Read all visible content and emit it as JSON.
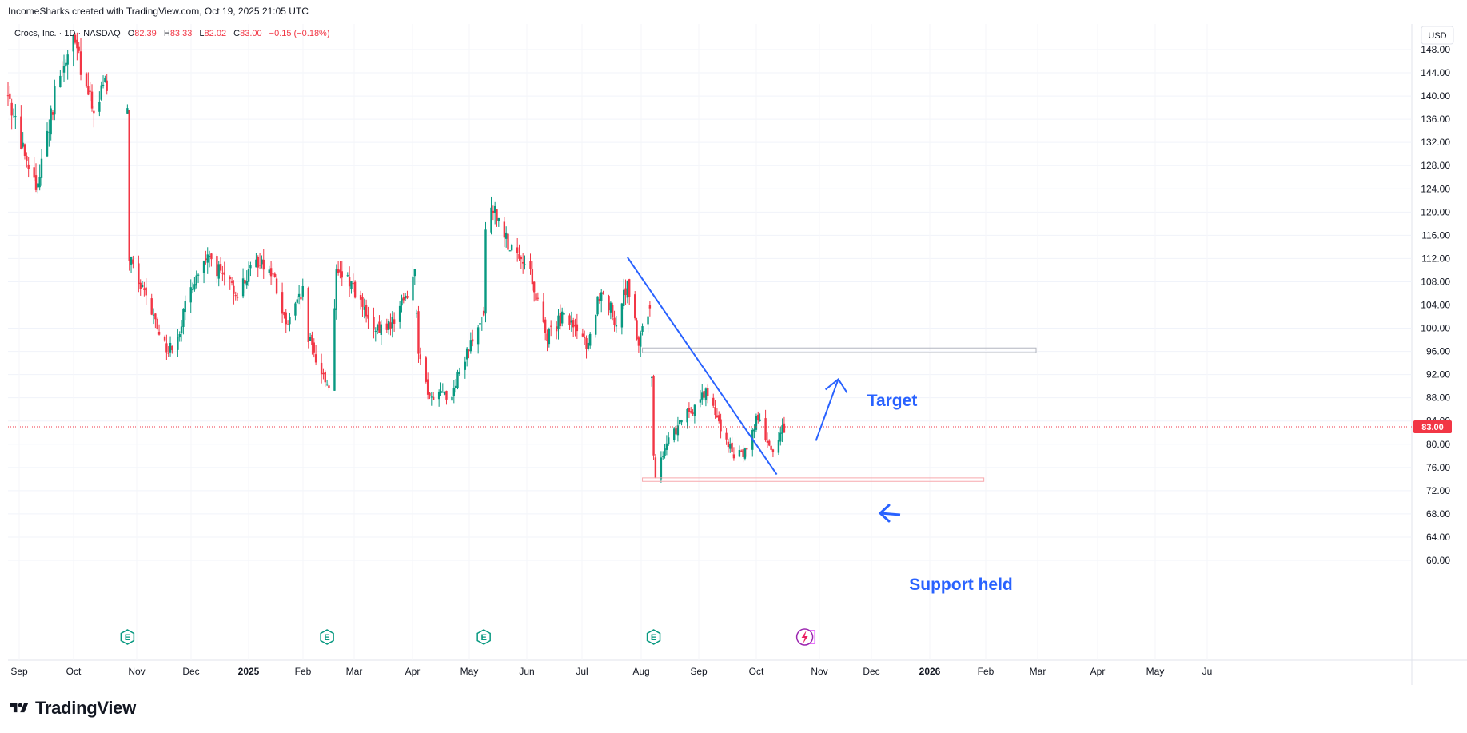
{
  "header": "IncomeSharks created with TradingView.com, Oct 19, 2025 21:05 UTC",
  "symbol_line": {
    "name": "Crocs, Inc. · 1D · NASDAQ",
    "o_label": "O",
    "o_value": "82.39",
    "h_label": "H",
    "h_value": "83.33",
    "l_label": "L",
    "l_value": "82.02",
    "c_label": "C",
    "c_value": "83.00",
    "change": "−0.15 (−0.18%)"
  },
  "currency": "USD",
  "last_price_label": "83.00",
  "footer_brand": "TradingView",
  "colors": {
    "up": "#089981",
    "down": "#f23645",
    "line": "#2962ff",
    "last_price": "#f23645",
    "earnings": "#089981",
    "earnings_future": "#e040fb"
  },
  "icons": [
    "earnings-icon",
    "dividend-icon",
    "tradingview-logo-icon"
  ],
  "chart_data": {
    "type": "candlestick",
    "y_ticks": [
      "148.00",
      "144.00",
      "140.00",
      "136.00",
      "132.00",
      "128.00",
      "124.00",
      "120.00",
      "116.00",
      "112.00",
      "108.00",
      "104.00",
      "100.00",
      "96.00",
      "92.00",
      "88.00",
      "84.00",
      "80.00",
      "76.00",
      "72.00",
      "68.00",
      "64.00",
      "60.00"
    ],
    "ylim": [
      58.6,
      151.3
    ],
    "x_ticks": [
      {
        "label": "Sep",
        "bold": false
      },
      {
        "label": "Oct",
        "bold": false
      },
      {
        "label": "Nov",
        "bold": false
      },
      {
        "label": "Dec",
        "bold": false
      },
      {
        "label": "2025",
        "bold": true
      },
      {
        "label": "Feb",
        "bold": false
      },
      {
        "label": "Mar",
        "bold": false
      },
      {
        "label": "Apr",
        "bold": false
      },
      {
        "label": "May",
        "bold": false
      },
      {
        "label": "Jun",
        "bold": false
      },
      {
        "label": "Jul",
        "bold": false
      },
      {
        "label": "Aug",
        "bold": false
      },
      {
        "label": "Sep",
        "bold": false
      },
      {
        "label": "Oct",
        "bold": false
      },
      {
        "label": "Nov",
        "bold": false
      },
      {
        "label": "Dec",
        "bold": false
      },
      {
        "label": "2026",
        "bold": true
      },
      {
        "label": "Feb",
        "bold": false
      },
      {
        "label": "Mar",
        "bold": false
      },
      {
        "label": "Apr",
        "bold": false
      },
      {
        "label": "May",
        "bold": false
      },
      {
        "label": "Ju",
        "bold": false
      }
    ],
    "last_price": 83.0,
    "price_path": [
      {
        "d": "2024-08-26",
        "p": 140
      },
      {
        "d": "2024-09-05",
        "p": 128
      },
      {
        "d": "2024-09-10",
        "p": 124
      },
      {
        "d": "2024-09-20",
        "p": 140
      },
      {
        "d": "2024-09-30",
        "p": 150
      },
      {
        "d": "2024-10-10",
        "p": 138
      },
      {
        "d": "2024-10-18",
        "p": 142
      },
      {
        "d": "2024-10-25",
        "p": 132
      },
      {
        "d": "2024-10-29",
        "p": 137
      },
      {
        "d": "2024-10-30",
        "p": 112
      },
      {
        "d": "2024-11-05",
        "p": 107
      },
      {
        "d": "2024-11-20",
        "p": 96
      },
      {
        "d": "2024-11-26",
        "p": 100
      },
      {
        "d": "2024-12-03",
        "p": 108
      },
      {
        "d": "2024-12-12",
        "p": 112
      },
      {
        "d": "2024-12-26",
        "p": 106
      },
      {
        "d": "2025-01-08",
        "p": 112
      },
      {
        "d": "2025-01-15",
        "p": 109
      },
      {
        "d": "2025-01-22",
        "p": 100
      },
      {
        "d": "2025-01-31",
        "p": 106
      },
      {
        "d": "2025-02-03",
        "p": 98
      },
      {
        "d": "2025-02-12",
        "p": 91
      },
      {
        "d": "2025-02-14",
        "p": 90
      },
      {
        "d": "2025-02-18",
        "p": 109
      },
      {
        "d": "2025-02-26",
        "p": 108
      },
      {
        "d": "2025-03-10",
        "p": 99
      },
      {
        "d": "2025-03-20",
        "p": 101
      },
      {
        "d": "2025-04-01",
        "p": 109
      },
      {
        "d": "2025-04-03",
        "p": 96
      },
      {
        "d": "2025-04-09",
        "p": 88
      },
      {
        "d": "2025-04-21",
        "p": 89
      },
      {
        "d": "2025-05-01",
        "p": 97
      },
      {
        "d": "2025-05-08",
        "p": 103
      },
      {
        "d": "2025-05-09",
        "p": 117
      },
      {
        "d": "2025-05-13",
        "p": 121
      },
      {
        "d": "2025-05-23",
        "p": 113
      },
      {
        "d": "2025-06-02",
        "p": 109
      },
      {
        "d": "2025-06-11",
        "p": 99
      },
      {
        "d": "2025-06-20",
        "p": 102
      },
      {
        "d": "2025-07-02",
        "p": 97
      },
      {
        "d": "2025-07-10",
        "p": 107
      },
      {
        "d": "2025-07-18",
        "p": 101
      },
      {
        "d": "2025-07-24",
        "p": 108
      },
      {
        "d": "2025-07-30",
        "p": 97
      },
      {
        "d": "2025-08-05",
        "p": 104
      },
      {
        "d": "2025-08-07",
        "p": 79
      },
      {
        "d": "2025-08-08",
        "p": 75
      },
      {
        "d": "2025-08-15",
        "p": 81
      },
      {
        "d": "2025-08-25",
        "p": 85
      },
      {
        "d": "2025-09-04",
        "p": 89
      },
      {
        "d": "2025-09-12",
        "p": 83
      },
      {
        "d": "2025-09-19",
        "p": 78
      },
      {
        "d": "2025-09-26",
        "p": 79
      },
      {
        "d": "2025-10-02",
        "p": 85
      },
      {
        "d": "2025-10-06",
        "p": 80
      },
      {
        "d": "2025-10-10",
        "p": 79
      },
      {
        "d": "2025-10-14",
        "p": 82
      },
      {
        "d": "2025-10-17",
        "p": 83
      }
    ],
    "annotations": {
      "target_label": "Target",
      "support_label": "Support held",
      "target_zone": {
        "from": "2025-08-01",
        "to": "2026-02-28",
        "low": 95.8,
        "high": 96.6
      },
      "support_zone": {
        "from": "2025-08-01",
        "to": "2026-01-31",
        "low": 73.6,
        "high": 74.2
      },
      "trendline": {
        "d1": "2025-07-24",
        "p1": 112.2,
        "d2": "2025-10-12",
        "p2": 74.8
      },
      "arrow": {
        "d1": "2025-11-02",
        "p1": 80.6,
        "d2": "2025-11-14",
        "p2": 91.2
      },
      "earnings_dates": [
        "2024-10-29",
        "2025-02-13",
        "2025-05-08",
        "2025-08-07",
        "2025-10-29"
      ],
      "dividend_date": "2025-10-27"
    }
  }
}
